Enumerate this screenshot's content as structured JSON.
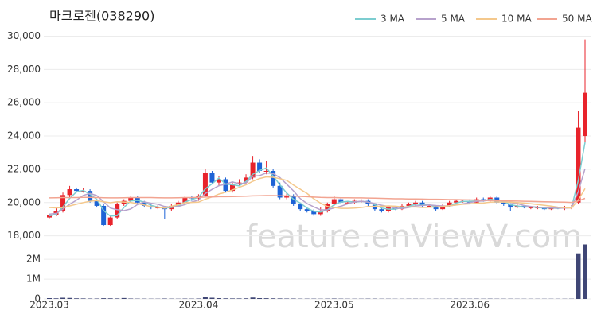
{
  "chart_data": {
    "type": "candlestick",
    "title": "마크로젠(038290)",
    "watermark": "feature.enViewV.com",
    "categories": [
      "2023.03",
      null,
      null,
      null,
      null,
      null,
      null,
      null,
      null,
      null,
      null,
      null,
      null,
      null,
      null,
      null,
      null,
      null,
      null,
      null,
      null,
      null,
      "2023.04",
      null,
      null,
      null,
      null,
      null,
      null,
      null,
      null,
      null,
      null,
      null,
      null,
      null,
      null,
      null,
      null,
      null,
      null,
      null,
      "2023.05",
      null,
      null,
      null,
      null,
      null,
      null,
      null,
      null,
      null,
      null,
      null,
      null,
      null,
      null,
      null,
      null,
      null,
      null,
      null,
      "2023.06",
      null,
      null,
      null,
      null,
      null,
      null,
      null,
      null,
      null,
      null,
      null,
      null,
      null,
      null,
      null,
      null,
      null
    ],
    "open": [
      19100,
      19250,
      19500,
      20450,
      20800,
      20700,
      20700,
      20100,
      19800,
      18650,
      19100,
      19900,
      20100,
      20300,
      20000,
      19800,
      19700,
      19700,
      19600,
      19800,
      20000,
      20300,
      20250,
      20400,
      21800,
      21200,
      21400,
      20700,
      21100,
      21200,
      21500,
      22400,
      21900,
      21900,
      21000,
      20300,
      20400,
      19900,
      19600,
      19500,
      19300,
      19500,
      19900,
      20200,
      20000,
      20000,
      20100,
      20100,
      19900,
      19600,
      19500,
      19700,
      19600,
      19800,
      19900,
      20000,
      19800,
      19800,
      19600,
      19800,
      20000,
      20100,
      20100,
      20000,
      20200,
      20100,
      20300,
      20000,
      19900,
      19700,
      19800,
      19700,
      19700,
      19700,
      19600,
      19700,
      19650,
      19700,
      20000,
      24000
    ],
    "high": [
      19300,
      19650,
      20600,
      21000,
      20900,
      20850,
      20800,
      20200,
      19900,
      19200,
      20000,
      20200,
      20400,
      20400,
      20100,
      19900,
      19850,
      19800,
      19900,
      20100,
      20400,
      20400,
      20500,
      22000,
      21900,
      21600,
      21500,
      21200,
      21400,
      21700,
      22800,
      22600,
      22500,
      22000,
      21200,
      20600,
      20500,
      20000,
      19700,
      19600,
      19700,
      20000,
      20400,
      20300,
      20100,
      20200,
      20200,
      20200,
      19950,
      19700,
      19800,
      19750,
      19900,
      20000,
      20100,
      20100,
      19900,
      19850,
      19900,
      20100,
      20200,
      20200,
      20200,
      20300,
      20300,
      20400,
      20400,
      20100,
      19950,
      19900,
      19850,
      19800,
      19800,
      19750,
      19800,
      19750,
      19800,
      19850,
      25500,
      29800
    ],
    "low": [
      19050,
      19200,
      19400,
      20300,
      20600,
      20600,
      20000,
      19700,
      18600,
      18600,
      19000,
      19800,
      20000,
      19900,
      19700,
      19600,
      19600,
      19000,
      19500,
      19700,
      19900,
      20100,
      20100,
      20300,
      21100,
      21000,
      20600,
      20600,
      21000,
      21100,
      21400,
      21800,
      21700,
      20900,
      20200,
      20200,
      19800,
      19500,
      19400,
      19200,
      19200,
      19400,
      19800,
      19900,
      19900,
      19900,
      20000,
      19800,
      19500,
      19400,
      19400,
      19550,
      19550,
      19750,
      19800,
      19750,
      19700,
      19500,
      19550,
      19750,
      19950,
      20000,
      19900,
      19950,
      20050,
      20050,
      19900,
      19800,
      19500,
      19650,
      19650,
      19600,
      19600,
      19550,
      19550,
      19600,
      19550,
      19600,
      19900,
      23600
    ],
    "close": [
      19250,
      19500,
      20450,
      20800,
      20700,
      20700,
      20100,
      19800,
      18650,
      19100,
      19900,
      20100,
      20300,
      20000,
      19800,
      19700,
      19700,
      19600,
      19800,
      20000,
      20300,
      20250,
      20400,
      21800,
      21200,
      21400,
      20700,
      21100,
      21200,
      21500,
      22400,
      21900,
      21900,
      21000,
      20300,
      20400,
      19900,
      19600,
      19500,
      19300,
      19500,
      19900,
      20200,
      20000,
      20000,
      20100,
      20100,
      19900,
      19600,
      19500,
      19700,
      19600,
      19800,
      19900,
      20000,
      19800,
      19800,
      19600,
      19800,
      20000,
      20100,
      20100,
      20000,
      20200,
      20100,
      20300,
      20000,
      19900,
      19700,
      19800,
      19700,
      19700,
      19700,
      19600,
      19700,
      19650,
      19700,
      19750,
      24500,
      26600
    ],
    "up_color": "#e8232b",
    "down_color": "#1e63d6",
    "ylim": [
      17600,
      30500
    ],
    "yticks": [
      {
        "value": 18000,
        "label": "18,000"
      },
      {
        "value": 20000,
        "label": "20,000"
      },
      {
        "value": 22000,
        "label": "22,000"
      },
      {
        "value": 24000,
        "label": "24,000"
      },
      {
        "value": 26000,
        "label": "26,000"
      },
      {
        "value": 28000,
        "label": "28,000"
      },
      {
        "value": 30000,
        "label": "30,000"
      }
    ],
    "grid": true,
    "legend": "top-right",
    "series": [
      {
        "name": "3 MA",
        "color": "#7ccdd0",
        "values": [
          19200,
          19300,
          19730,
          20250,
          20650,
          20730,
          20500,
          20200,
          19520,
          19180,
          19220,
          19700,
          20100,
          20130,
          20030,
          19830,
          19730,
          19670,
          19700,
          19800,
          20030,
          20180,
          20320,
          20820,
          21130,
          21470,
          21100,
          21070,
          21000,
          21270,
          21700,
          21930,
          22070,
          21600,
          21070,
          20570,
          20200,
          19970,
          19670,
          19470,
          19430,
          19570,
          19870,
          20030,
          20070,
          20030,
          20070,
          20030,
          19870,
          19670,
          19600,
          19600,
          19700,
          19770,
          19900,
          19900,
          19870,
          19730,
          19730,
          19800,
          19970,
          20070,
          20070,
          20100,
          20100,
          20200,
          20130,
          20070,
          19870,
          19800,
          19730,
          19730,
          19700,
          19670,
          19670,
          19650,
          19680,
          19700,
          21320,
          23620
        ]
      },
      {
        "name": "5 MA",
        "color": "#b7a2cc",
        "values": [
          19300,
          19350,
          19600,
          19900,
          20140,
          20430,
          20550,
          20420,
          20050,
          19670,
          19570,
          19510,
          19610,
          19880,
          20040,
          19960,
          19900,
          19760,
          19720,
          19760,
          19880,
          20030,
          20150,
          20550,
          20790,
          21010,
          21100,
          21240,
          21120,
          21180,
          21580,
          21620,
          21780,
          21740,
          21500,
          21100,
          20700,
          20240,
          19940,
          19740,
          19560,
          19560,
          19680,
          19780,
          19920,
          20040,
          20080,
          20020,
          19940,
          19840,
          19760,
          19660,
          19640,
          19700,
          19800,
          19820,
          19860,
          19820,
          19800,
          19800,
          19860,
          19920,
          20000,
          20080,
          20100,
          20140,
          20120,
          20100,
          20000,
          19940,
          19820,
          19760,
          19720,
          19700,
          19680,
          19670,
          19670,
          19680,
          20660,
          22040
        ]
      },
      {
        "name": "10 MA",
        "color": "#f4c88c",
        "values": [
          19700,
          19680,
          19700,
          19800,
          19900,
          20000,
          20080,
          20120,
          20050,
          19990,
          20050,
          20030,
          20010,
          19930,
          19850,
          19750,
          19710,
          19660,
          19780,
          19870,
          19990,
          20010,
          20020,
          20200,
          20340,
          20510,
          20620,
          20760,
          20910,
          21070,
          21280,
          21440,
          21540,
          21520,
          21430,
          21330,
          21050,
          20800,
          20550,
          20230,
          19960,
          19760,
          19700,
          19650,
          19650,
          19670,
          19700,
          19760,
          19770,
          19780,
          19800,
          19780,
          19740,
          19730,
          19730,
          19700,
          19710,
          19740,
          19760,
          19810,
          19850,
          19900,
          19920,
          19960,
          19970,
          20020,
          20040,
          20030,
          20020,
          20000,
          19970,
          19930,
          19880,
          19830,
          19790,
          19720,
          19690,
          19670,
          20150,
          20840
        ]
      },
      {
        "name": "50 MA",
        "color": "#f2a491",
        "values": [
          20280,
          20290,
          20300,
          20300,
          20300,
          20310,
          20310,
          20300,
          20290,
          20280,
          20280,
          20290,
          20300,
          20300,
          20300,
          20300,
          20290,
          20280,
          20280,
          20290,
          20300,
          20300,
          20310,
          20330,
          20340,
          20350,
          20350,
          20360,
          20370,
          20380,
          20400,
          20410,
          20420,
          20420,
          20410,
          20400,
          20390,
          20370,
          20350,
          20330,
          20310,
          20300,
          20300,
          20290,
          20290,
          20280,
          20280,
          20270,
          20260,
          20250,
          20240,
          20230,
          20230,
          20220,
          20220,
          20210,
          20200,
          20200,
          20190,
          20180,
          20180,
          20170,
          20160,
          20150,
          20140,
          20130,
          20120,
          20110,
          20100,
          20090,
          20080,
          20070,
          20060,
          20050,
          20040,
          20030,
          20020,
          20010,
          20100,
          20250
        ]
      }
    ],
    "volume": {
      "color": "#3f4675",
      "values": [
        40000,
        30000,
        60000,
        50000,
        30000,
        25000,
        20000,
        20000,
        35000,
        30000,
        25000,
        45000,
        20000,
        15000,
        15000,
        12000,
        12000,
        20000,
        15000,
        12000,
        18000,
        15000,
        20000,
        110000,
        60000,
        40000,
        30000,
        25000,
        25000,
        30000,
        70000,
        40000,
        35000,
        30000,
        25000,
        20000,
        20000,
        15000,
        15000,
        15000,
        12000,
        15000,
        20000,
        15000,
        12000,
        12000,
        12000,
        15000,
        15000,
        12000,
        12000,
        10000,
        10000,
        12000,
        12000,
        10000,
        10000,
        12000,
        10000,
        12000,
        15000,
        12000,
        12000,
        15000,
        12000,
        15000,
        12000,
        12000,
        12000,
        10000,
        10000,
        10000,
        10000,
        10000,
        10000,
        10000,
        10000,
        12000,
        2300000,
        2750000
      ],
      "ylim": [
        0,
        2850000
      ],
      "yticks": [
        0,
        {
          "value": 1000000,
          "label": "1M"
        },
        {
          "value": 2000000,
          "label": "2M"
        }
      ]
    }
  }
}
